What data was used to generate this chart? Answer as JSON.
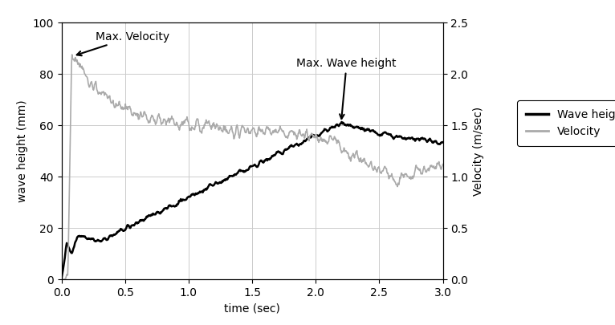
{
  "title": "",
  "xlabel": "time (sec)",
  "ylabel_left": "wave height (mm)",
  "ylabel_right": "Velocity (m/sec)",
  "xlim": [
    0.0,
    3.0
  ],
  "ylim_left": [
    0,
    100
  ],
  "ylim_right": [
    0.0,
    2.5
  ],
  "xticks": [
    0.0,
    0.5,
    1.0,
    1.5,
    2.0,
    2.5,
    3.0
  ],
  "yticks_left": [
    0,
    20,
    40,
    60,
    80,
    100
  ],
  "yticks_right": [
    0.0,
    0.5,
    1.0,
    1.5,
    2.0,
    2.5
  ],
  "wave_height_color": "#000000",
  "velocity_color": "#aaaaaa",
  "annotation_velocity_text": "Max. Velocity",
  "annotation_wave_text": "Max. Wave height",
  "legend_labels": [
    "Wave height",
    "Velocity"
  ],
  "background_color": "#ffffff",
  "grid_color": "#cccccc",
  "figsize": [
    7.66,
    4.05
  ],
  "dpi": 100
}
